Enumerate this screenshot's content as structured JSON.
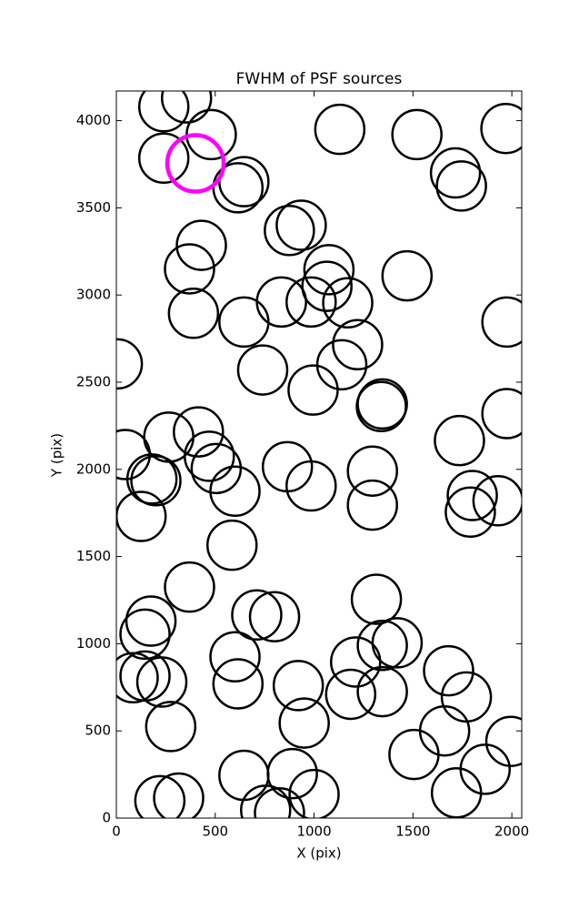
{
  "chart_data": {
    "type": "scatter",
    "title": "FWHM of PSF sources",
    "x_label": "X (pix)",
    "y_label": "Y (pix)",
    "xlim": [
      0,
      2050
    ],
    "ylim": [
      0,
      4170
    ],
    "xticks": [
      0,
      500,
      1000,
      1500,
      2000
    ],
    "yticks": [
      0,
      500,
      1000,
      1500,
      2000,
      2500,
      3000,
      3500,
      4000
    ],
    "series": [
      {
        "color": "#000000",
        "x": [
          240,
          355,
          480,
          240,
          645,
          615,
          1130,
          1520,
          1970,
          1715,
          1745,
          875,
          935,
          430,
          370,
          390,
          645,
          835,
          985,
          1075,
          1065,
          1170,
          1470,
          1975,
          1220,
          1140,
          5,
          740,
          995,
          1340,
          1345,
          415,
          265,
          470,
          45,
          180,
          200,
          505,
          600,
          865,
          985,
          1295,
          1295,
          1735,
          1800,
          1790,
          1930,
          1975,
          125,
          585,
          370,
          1315,
          175,
          145,
          710,
          800,
          600,
          1210,
          1345,
          1420,
          1680,
          85,
          145,
          230,
          615,
          920,
          1185,
          1345,
          1770,
          275,
          950,
          1660,
          1995,
          1505,
          1865,
          645,
          890,
          1000,
          220,
          315,
          755,
          825,
          1720
        ],
        "values": [
          4080,
          4130,
          3920,
          3785,
          3650,
          3615,
          3950,
          3920,
          3955,
          3700,
          3625,
          3370,
          3400,
          3285,
          3150,
          2895,
          2845,
          2960,
          2960,
          3145,
          3050,
          2955,
          3110,
          2845,
          2715,
          2600,
          2605,
          2570,
          2455,
          2360,
          2375,
          2215,
          2185,
          2075,
          2085,
          1945,
          1935,
          2005,
          1875,
          2015,
          1905,
          1990,
          1795,
          2165,
          1850,
          1755,
          1820,
          2320,
          1730,
          1565,
          1325,
          1255,
          1130,
          1055,
          1165,
          1155,
          925,
          895,
          990,
          1005,
          845,
          805,
          815,
          780,
          770,
          760,
          710,
          725,
          695,
          525,
          545,
          500,
          440,
          365,
          280,
          245,
          255,
          135,
          100,
          115,
          45,
          30,
          145
        ]
      },
      {
        "color": "#ff00ff",
        "x": [
          400
        ],
        "values": [
          3755
        ]
      }
    ]
  }
}
